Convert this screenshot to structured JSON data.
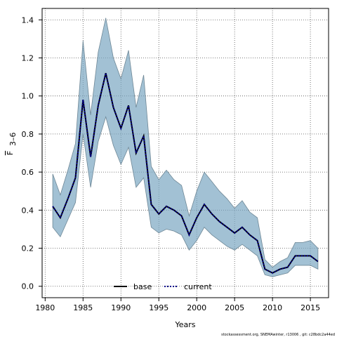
{
  "chart_data": {
    "type": "line",
    "xlabel": "Years",
    "ylabel": "F",
    "ylabel_subscript": "3–6",
    "xlim": [
      1979.6,
      2017.4
    ],
    "ylim": [
      -0.06,
      1.46
    ],
    "x_ticks": [
      1980,
      1985,
      1990,
      1995,
      2000,
      2005,
      2010,
      2015
    ],
    "y_ticks": [
      0.0,
      0.2,
      0.4,
      0.6,
      0.8,
      1.0,
      1.2,
      1.4
    ],
    "y_tick_labels": [
      "0.0",
      "0.2",
      "0.4",
      "0.6",
      "0.8",
      "1.0",
      "1.2",
      "1.4"
    ],
    "grid": true,
    "legend_placement": "bottom-center",
    "x": [
      1981,
      1982,
      1983,
      1984,
      1985,
      1986,
      1987,
      1988,
      1989,
      1990,
      1991,
      1992,
      1993,
      1994,
      1995,
      1996,
      1997,
      1998,
      1999,
      2000,
      2001,
      2002,
      2003,
      2004,
      2005,
      2006,
      2007,
      2008,
      2009,
      2010,
      2011,
      2012,
      2013,
      2014,
      2015,
      2016
    ],
    "series": [
      {
        "name": "base",
        "style": "solid",
        "color": "#000000",
        "values": [
          0.42,
          0.36,
          0.46,
          0.57,
          0.98,
          0.68,
          0.95,
          1.12,
          0.94,
          0.83,
          0.95,
          0.7,
          0.79,
          0.43,
          0.38,
          0.42,
          0.4,
          0.37,
          0.27,
          0.36,
          0.43,
          0.38,
          0.34,
          0.31,
          0.28,
          0.31,
          0.27,
          0.24,
          0.09,
          0.07,
          0.09,
          0.1,
          0.16,
          0.16,
          0.16,
          0.13
        ]
      },
      {
        "name": "current",
        "style": "dotted",
        "color": "#00008b",
        "values": [
          0.42,
          0.36,
          0.46,
          0.57,
          0.98,
          0.68,
          0.95,
          1.12,
          0.94,
          0.83,
          0.95,
          0.7,
          0.79,
          0.43,
          0.38,
          0.42,
          0.4,
          0.37,
          0.27,
          0.36,
          0.43,
          0.38,
          0.34,
          0.31,
          0.28,
          0.31,
          0.27,
          0.24,
          0.09,
          0.07,
          0.09,
          0.1,
          0.16,
          0.16,
          0.16,
          0.13
        ]
      }
    ],
    "band": {
      "color": "#7aa7c2",
      "lower": [
        0.31,
        0.26,
        0.35,
        0.44,
        0.8,
        0.52,
        0.76,
        0.89,
        0.74,
        0.64,
        0.73,
        0.52,
        0.57,
        0.31,
        0.28,
        0.3,
        0.29,
        0.27,
        0.19,
        0.24,
        0.31,
        0.27,
        0.24,
        0.21,
        0.19,
        0.22,
        0.19,
        0.16,
        0.06,
        0.05,
        0.06,
        0.07,
        0.11,
        0.11,
        0.11,
        0.09
      ],
      "upper": [
        0.59,
        0.48,
        0.61,
        0.75,
        1.29,
        0.9,
        1.23,
        1.41,
        1.2,
        1.09,
        1.24,
        0.94,
        1.11,
        0.63,
        0.56,
        0.61,
        0.56,
        0.53,
        0.37,
        0.5,
        0.6,
        0.55,
        0.5,
        0.46,
        0.41,
        0.45,
        0.39,
        0.36,
        0.14,
        0.1,
        0.13,
        0.15,
        0.23,
        0.23,
        0.24,
        0.2
      ]
    }
  },
  "legend": {
    "items": [
      {
        "label": "base",
        "style": "solid",
        "color": "#000000"
      },
      {
        "label": "current",
        "style": "dotted",
        "color": "#00008b"
      }
    ]
  },
  "footer": {
    "text": "stockassessment.org, SNEMAwinter, r13006 , git: c28bdc2a44ed"
  }
}
